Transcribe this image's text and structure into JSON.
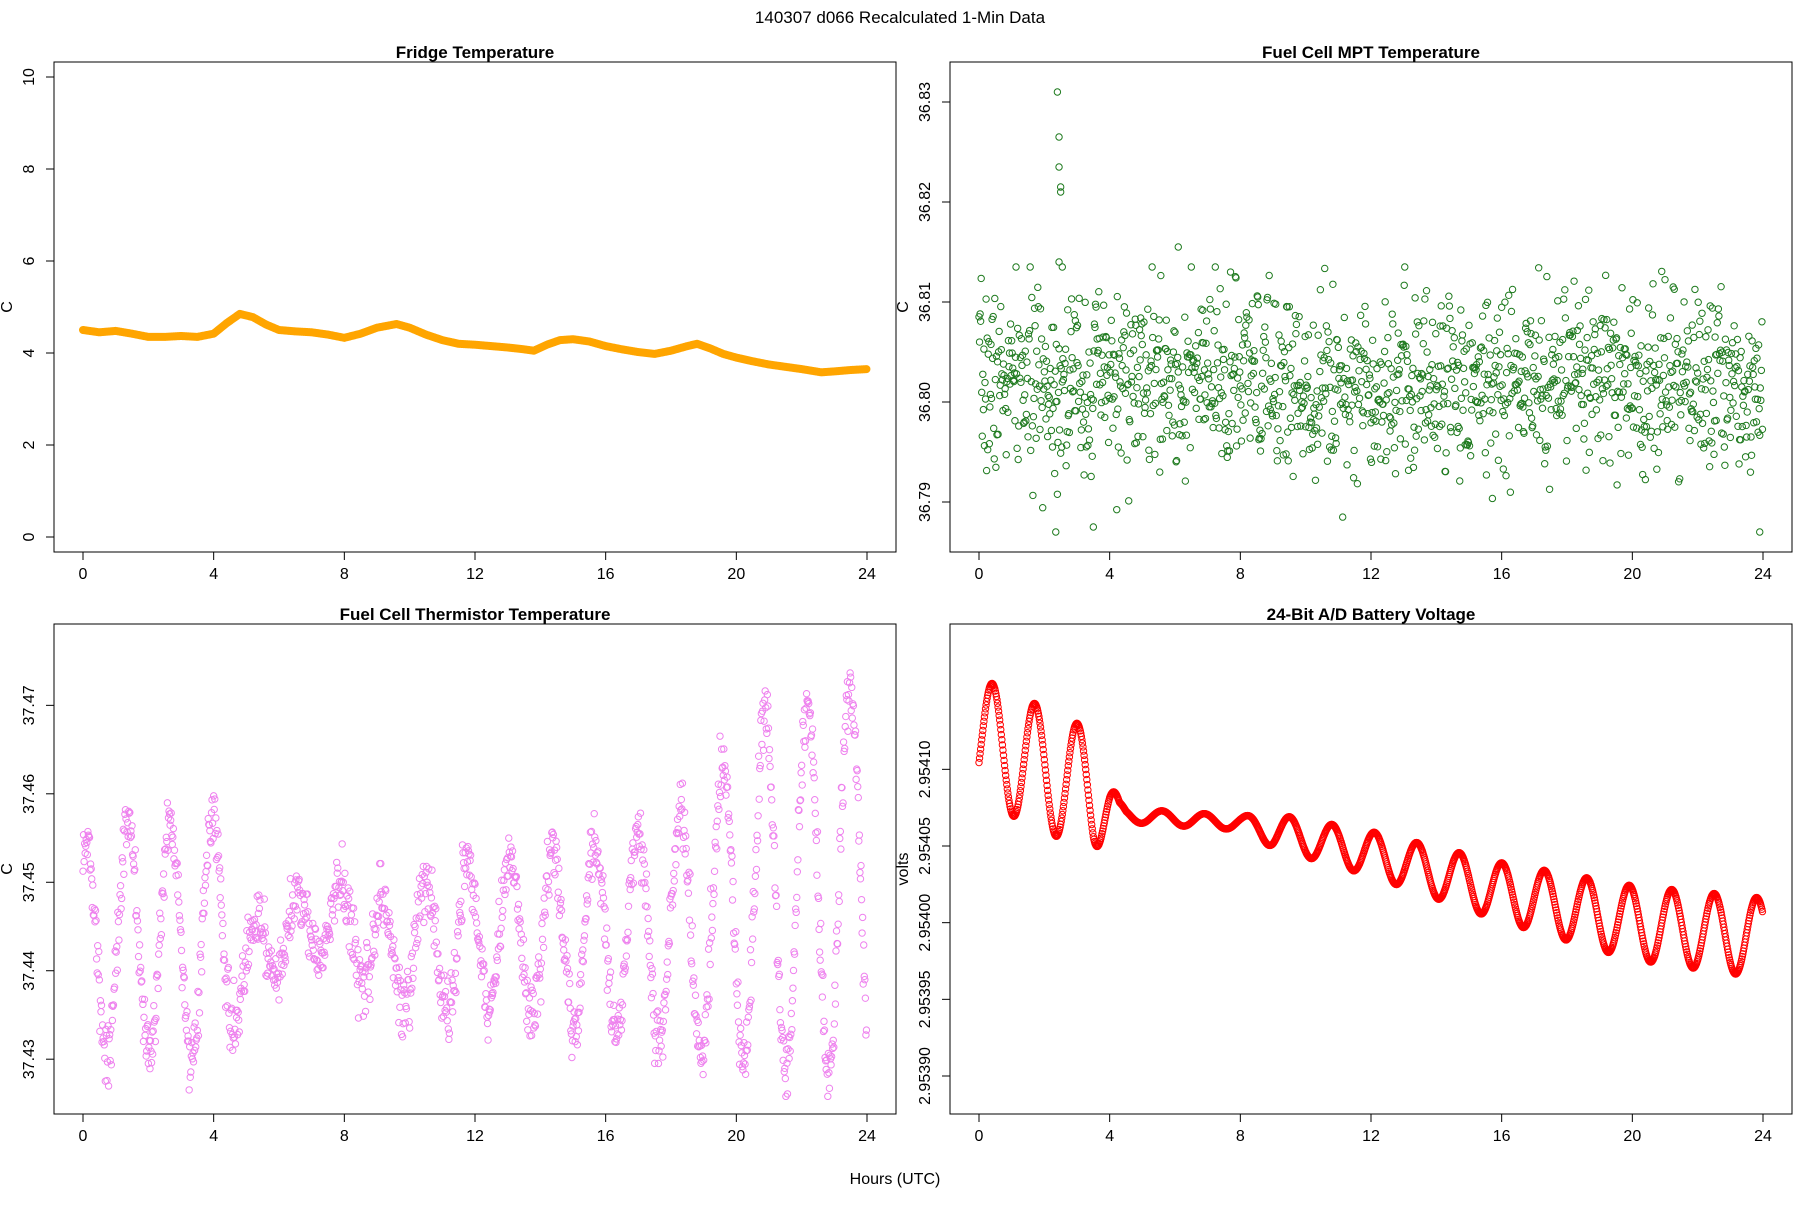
{
  "figure": {
    "title": "140307   d066   Recalculated 1-Min Data",
    "xlabel": "Hours (UTC)"
  },
  "chart_data": [
    {
      "type": "line",
      "title": "Fridge Temperature",
      "xlabel": "",
      "ylabel": "C",
      "xlim": [
        0,
        24
      ],
      "ylim": [
        0,
        10
      ],
      "xticks": [
        "0",
        "4",
        "8",
        "12",
        "16",
        "20",
        "24"
      ],
      "yticks": [
        "0",
        "2",
        "4",
        "6",
        "8",
        "10"
      ],
      "color": "#FFA500",
      "marker": "filled-thick",
      "x": [
        0,
        0.5,
        1,
        1.5,
        2,
        2.5,
        3,
        3.5,
        4,
        4.4,
        4.8,
        5.2,
        5.6,
        6,
        6.5,
        7,
        7.5,
        8,
        8.5,
        9,
        9.6,
        10,
        10.5,
        11,
        11.5,
        12,
        12.5,
        13,
        13.5,
        13.8,
        14.2,
        14.6,
        15,
        15.5,
        16,
        16.5,
        17,
        17.5,
        18,
        18.5,
        18.8,
        19.2,
        19.6,
        20,
        20.5,
        21,
        21.5,
        22,
        22.6,
        23,
        23.5,
        24
      ],
      "y": [
        4.5,
        4.45,
        4.48,
        4.42,
        4.35,
        4.35,
        4.37,
        4.35,
        4.42,
        4.65,
        4.85,
        4.78,
        4.62,
        4.5,
        4.47,
        4.45,
        4.4,
        4.33,
        4.42,
        4.55,
        4.63,
        4.55,
        4.4,
        4.28,
        4.2,
        4.18,
        4.15,
        4.12,
        4.08,
        4.05,
        4.18,
        4.28,
        4.3,
        4.25,
        4.15,
        4.08,
        4.02,
        3.98,
        4.05,
        4.15,
        4.2,
        4.1,
        3.98,
        3.9,
        3.82,
        3.75,
        3.7,
        3.65,
        3.58,
        3.6,
        3.63,
        3.65
      ]
    },
    {
      "type": "scatter",
      "title": "Fuel Cell MPT Temperature",
      "xlabel": "",
      "ylabel": "C",
      "xlim": [
        0,
        24
      ],
      "ylim": [
        36.7865,
        36.8325
      ],
      "xticks": [
        "0",
        "4",
        "8",
        "12",
        "16",
        "20",
        "24"
      ],
      "yticks": [
        "36.79",
        "36.80",
        "36.81",
        "36.82",
        "36.83"
      ],
      "color": "#1E7A1E",
      "marker": "open-circle",
      "n_points": 1440,
      "center": 36.802,
      "noise_sd": 0.0045,
      "outliers": [
        {
          "x": 2.4,
          "y": 36.831
        },
        {
          "x": 2.45,
          "y": 36.8265
        },
        {
          "x": 2.45,
          "y": 36.8235
        },
        {
          "x": 2.5,
          "y": 36.821
        },
        {
          "x": 2.5,
          "y": 36.8215
        },
        {
          "x": 2.45,
          "y": 36.814
        },
        {
          "x": 2.55,
          "y": 36.8135
        },
        {
          "x": 6.1,
          "y": 36.8155
        },
        {
          "x": 2.35,
          "y": 36.787
        },
        {
          "x": 3.5,
          "y": 36.7875
        },
        {
          "x": 23.9,
          "y": 36.787
        }
      ]
    },
    {
      "type": "scatter",
      "title": "Fuel Cell Thermistor Temperature",
      "xlabel": "",
      "ylabel": "C",
      "xlim": [
        0,
        24
      ],
      "ylim": [
        37.4255,
        37.4775
      ],
      "xticks": [
        "0",
        "4",
        "8",
        "12",
        "16",
        "20",
        "24"
      ],
      "yticks": [
        "37.43",
        "37.44",
        "37.45",
        "37.46",
        "37.47"
      ],
      "color": "#EE82EE",
      "marker": "open-circle",
      "n_points": 1440,
      "mean_knots": {
        "x": [
          0,
          4,
          5,
          6,
          8,
          9,
          12,
          16,
          19,
          20,
          24
        ],
        "y": [
          37.443,
          37.444,
          37.44,
          37.444,
          37.446,
          37.442,
          37.444,
          37.444,
          37.445,
          37.448,
          37.451
        ]
      },
      "amplitude_knots": {
        "x": [
          0,
          4,
          4.8,
          5.5,
          8,
          9,
          12,
          16,
          19,
          20,
          24
        ],
        "y": [
          0.012,
          0.014,
          0.007,
          0.004,
          0.004,
          0.006,
          0.008,
          0.011,
          0.014,
          0.019,
          0.022
        ]
      },
      "period_hours": 1.3
    },
    {
      "type": "line",
      "title": "24-Bit A/D Battery Voltage",
      "xlabel": "",
      "ylabel": "volts",
      "xlim": [
        0,
        24
      ],
      "ylim": [
        2.953885,
        2.954185
      ],
      "xticks": [
        "0",
        "4",
        "8",
        "12",
        "16",
        "20",
        "24"
      ],
      "yticks": [
        "2.95390",
        "2.95395",
        "2.95400",
        "2.95405",
        "2.95410"
      ],
      "color": "#FF0000",
      "marker": "open-circle-dense",
      "n_points": 1440,
      "trend_knots": {
        "x": [
          0,
          4,
          4.5,
          8,
          12,
          16,
          20,
          24
        ],
        "y": [
          2.95412,
          2.95408,
          2.95407,
          2.954065,
          2.954045,
          2.95402,
          2.954,
          2.95399
        ]
      },
      "amplitude_knots": {
        "x": [
          0,
          3.5,
          4.3,
          8,
          9,
          16,
          20,
          24
        ],
        "y": [
          4e-05,
          4e-05,
          4.5e-06,
          4.5e-06,
          1.1e-05,
          1.9e-05,
          2.4e-05,
          2.6e-05
        ]
      },
      "period_hours": 1.3
    }
  ]
}
